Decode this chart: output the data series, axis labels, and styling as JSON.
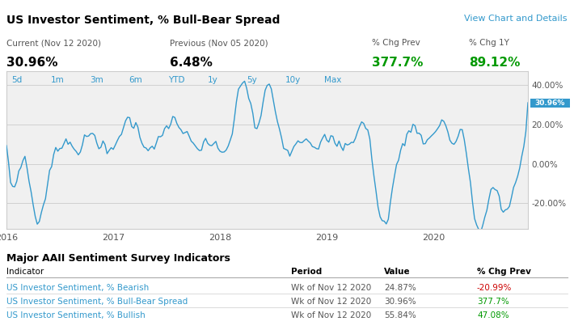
{
  "title": "US Investor Sentiment, % Bull-Bear Spread",
  "view_link": "View Chart and Details",
  "current_label": "Current (Nov 12 2020)",
  "current_value": "30.96%",
  "previous_label": "Previous (Nov 05 2020)",
  "previous_value": "6.48%",
  "chg_prev_label": "% Chg Prev",
  "chg_prev_value": "377.7%",
  "chg_1y_label": "% Chg 1Y",
  "chg_1y_value": "89.12%",
  "time_buttons": [
    "5d",
    "1m",
    "3m",
    "6m",
    "YTD",
    "1y",
    "5y",
    "10y",
    "Max"
  ],
  "last_value_label": "30.96%",
  "yticks": [
    "40.00%",
    "20.00%",
    "0.00%",
    "-20.00%"
  ],
  "ytick_values": [
    40,
    20,
    0,
    -20
  ],
  "ylim": [
    -33,
    47
  ],
  "xlim": [
    0,
    254
  ],
  "year_ticks": [
    0,
    52,
    104,
    156,
    208
  ],
  "year_labels": [
    "2016",
    "2017",
    "2018",
    "2019",
    "2020"
  ],
  "table_title": "Major AAII Sentiment Survey Indicators",
  "table_headers": [
    "Indicator",
    "Period",
    "Value",
    "% Chg Prev"
  ],
  "table_rows": [
    [
      "US Investor Sentiment, % Bearish",
      "Wk of Nov 12 2020",
      "24.87%",
      "-20.99%"
    ],
    [
      "US Investor Sentiment, % Bull-Bear Spread",
      "Wk of Nov 12 2020",
      "30.96%",
      "377.7%"
    ],
    [
      "US Investor Sentiment, % Bullish",
      "Wk of Nov 12 2020",
      "55.84%",
      "47.08%"
    ]
  ],
  "table_row_colors": [
    "#cc0000",
    "#009900",
    "#009900"
  ],
  "line_color": "#3399cc",
  "bg_color": "#f0f0f0",
  "chart_bg": "#ffffff",
  "header_bg": "#ffffff",
  "grid_color": "#cccccc",
  "label_color": "#555555",
  "title_color": "#000000",
  "blue_link_color": "#3399cc",
  "green_color": "#009900",
  "red_color": "#cc0000",
  "dark_bar_color": "#222222",
  "separator_color": "#333333",
  "keypoints_x": [
    0,
    4,
    8,
    14,
    20,
    28,
    35,
    42,
    50,
    58,
    65,
    72,
    80,
    88,
    95,
    102,
    108,
    114,
    118,
    122,
    126,
    132,
    138,
    144,
    150,
    157,
    163,
    170,
    176,
    182,
    188,
    194,
    200,
    206,
    212,
    218,
    222,
    228,
    234,
    238,
    242,
    246,
    250,
    253,
    254
  ],
  "keypoints_y": [
    5,
    -10,
    3,
    -28,
    -8,
    12,
    8,
    15,
    5,
    22,
    14,
    8,
    22,
    12,
    8,
    10,
    8,
    42,
    32,
    18,
    38,
    20,
    8,
    14,
    10,
    12,
    8,
    16,
    14,
    -30,
    -10,
    14,
    17,
    12,
    22,
    10,
    15,
    -30,
    -22,
    -12,
    -25,
    -15,
    2,
    20,
    31
  ]
}
